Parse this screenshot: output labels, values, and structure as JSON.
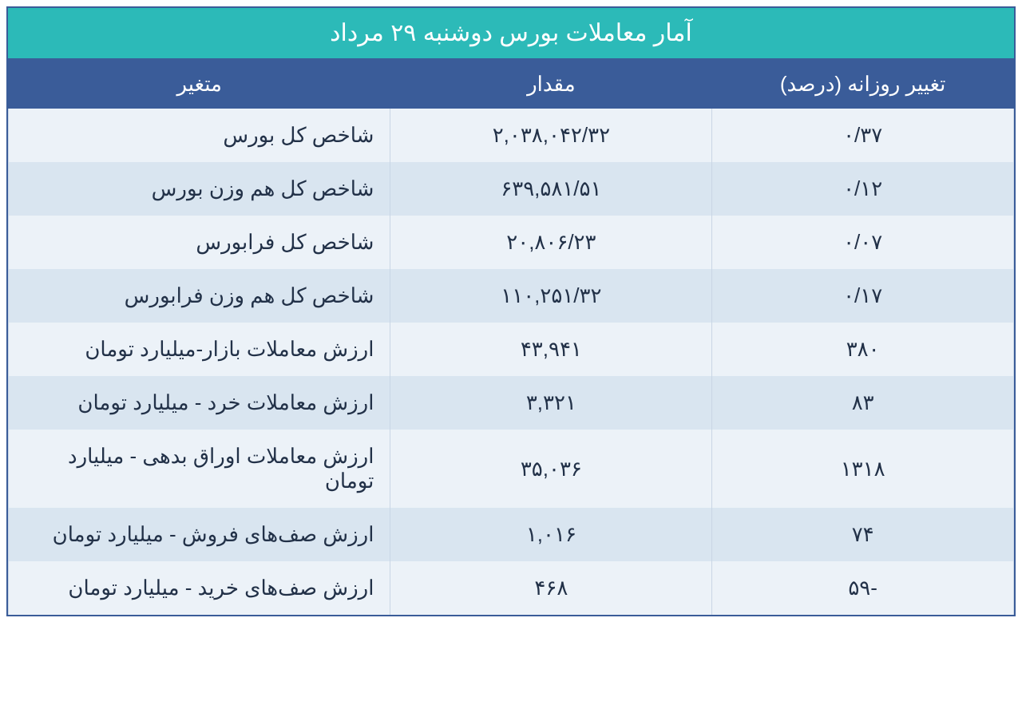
{
  "title": "آمار معاملات بورس دوشنبه ۲۹ مرداد",
  "colors": {
    "title_bg": "#2cbab8",
    "header_bg": "#3a5c99",
    "header_text": "#ffffff",
    "row_odd_bg": "#ecf2f8",
    "row_even_bg": "#d9e5f0",
    "cell_text": "#223148",
    "border": "#3a5c99",
    "cell_border": "#c9d6e5"
  },
  "typography": {
    "title_fontsize": 30,
    "header_fontsize": 26,
    "cell_fontsize": 26,
    "font_family": "Tahoma"
  },
  "table": {
    "columns": [
      {
        "key": "change",
        "label": "تغییر روزانه (درصد)",
        "width_pct": 30,
        "align": "center"
      },
      {
        "key": "value",
        "label": "مقدار",
        "width_pct": 32,
        "align": "center"
      },
      {
        "key": "variable",
        "label": "متغیر",
        "width_pct": 38,
        "align": "right"
      }
    ],
    "rows": [
      {
        "variable": "شاخص کل بورس",
        "value": "۲,۰۳۸,۰۴۲/۳۲",
        "change": "۰/۳۷"
      },
      {
        "variable": "شاخص کل هم وزن بورس",
        "value": "۶۳۹,۵۸۱/۵۱",
        "change": "۰/۱۲"
      },
      {
        "variable": "شاخص کل فرابورس",
        "value": "۲۰,۸۰۶/۲۳",
        "change": "۰/۰۷"
      },
      {
        "variable": "شاخص کل هم وزن فرابورس",
        "value": "۱۱۰,۲۵۱/۳۲",
        "change": "۰/۱۷"
      },
      {
        "variable": "ارزش معاملات بازار-میلیارد تومان",
        "value": "۴۳,۹۴۱",
        "change": "۳۸۰"
      },
      {
        "variable": "ارزش معاملات خرد - میلیارد تومان",
        "value": "۳,۳۲۱",
        "change": "۸۳"
      },
      {
        "variable": "ارزش معاملات اوراق بدهی - میلیارد تومان",
        "value": "۳۵,۰۳۶",
        "change": "۱۳۱۸"
      },
      {
        "variable": "ارزش صف‌های فروش - میلیارد تومان",
        "value": "۱,۰۱۶",
        "change": "۷۴"
      },
      {
        "variable": "ارزش صف‌های خرید - میلیارد تومان",
        "value": "۴۶۸",
        "change": "-۵۹"
      }
    ]
  }
}
